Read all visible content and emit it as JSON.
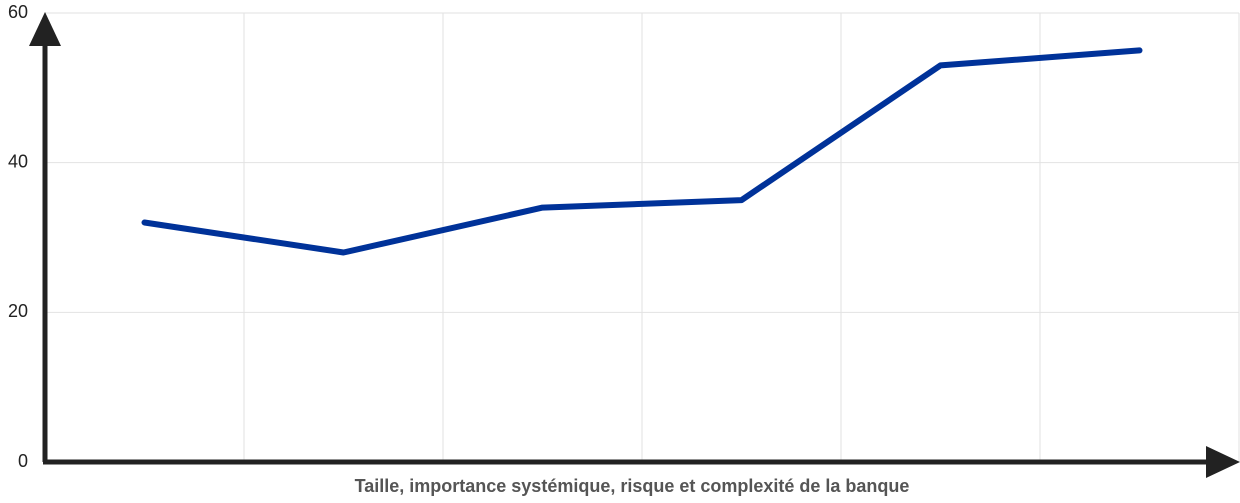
{
  "chart_data": {
    "type": "line",
    "x_label": "Taille, importance systémique, risque et complexité de la banque",
    "categories": [
      null,
      null,
      null,
      null,
      null,
      null
    ],
    "series": [
      {
        "color": "#003299",
        "values": [
          32,
          28,
          34,
          35,
          53,
          55
        ]
      }
    ],
    "ylim": [
      0,
      60
    ],
    "yticks": [
      0,
      20,
      40,
      60
    ],
    "grid": true
  }
}
